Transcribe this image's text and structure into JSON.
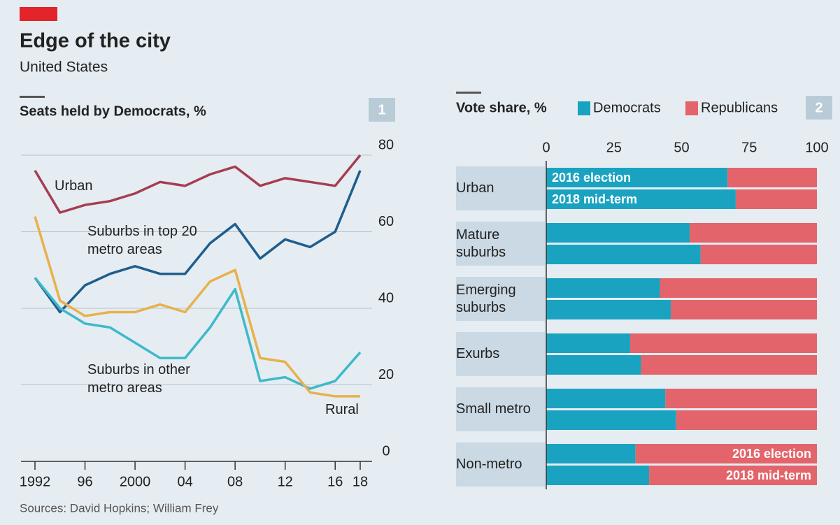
{
  "header": {
    "title": "Edge of the city",
    "subtitle": "United States",
    "source": "Sources: David Hopkins; William Frey"
  },
  "chart_data": [
    {
      "type": "line",
      "title": "Seats held by Democrats, %",
      "panel_number": 1,
      "x": [
        1992,
        1994,
        1996,
        1998,
        2000,
        2002,
        2004,
        2006,
        2008,
        2010,
        2012,
        2014,
        2016,
        2018
      ],
      "xlim": [
        1992,
        2018
      ],
      "xticks": [
        1992,
        {
          "value": 1996,
          "label": "96"
        },
        2000,
        {
          "value": 2004,
          "label": "04"
        },
        {
          "value": 2008,
          "label": "08"
        },
        {
          "value": 2012,
          "label": "12"
        },
        {
          "value": 2016,
          "label": "16"
        },
        {
          "value": 2018,
          "label": "18"
        }
      ],
      "ylim": [
        0,
        80
      ],
      "yticks": [
        0,
        20,
        40,
        60,
        80
      ],
      "grid": true,
      "series": [
        {
          "name": "Urban",
          "color": "#a63d52",
          "values": [
            76,
            65,
            67,
            68,
            70,
            73,
            72,
            75,
            77,
            72,
            74,
            73,
            72,
            80
          ]
        },
        {
          "name": "Suburbs in top 20 metro areas",
          "color": "#1f5e8e",
          "values": [
            48,
            39,
            46,
            49,
            51,
            49,
            49,
            57,
            62,
            53,
            58,
            56,
            60,
            76
          ]
        },
        {
          "name": "Suburbs in other metro areas",
          "color": "#3fb9c9",
          "values": [
            48,
            40,
            36,
            35,
            31,
            27,
            27,
            35,
            45,
            21,
            22,
            19,
            21,
            28.5
          ]
        },
        {
          "name": "Rural",
          "color": "#e9b04c",
          "values": [
            64,
            42,
            38,
            39,
            39,
            41,
            39,
            47,
            50,
            27,
            26,
            18,
            17,
            17
          ]
        }
      ]
    },
    {
      "type": "bar",
      "orientation": "horizontal",
      "stacked": true,
      "title": "Vote share, %",
      "panel_number": 2,
      "categories": [
        "Urban",
        "Mature suburbs",
        "Emerging suburbs",
        "Exurbs",
        "Small metro",
        "Non-metro"
      ],
      "bar_labels": [
        "2016 election",
        "2018 mid-term"
      ],
      "xlim": [
        0,
        100
      ],
      "xticks": [
        0,
        25,
        50,
        75,
        100
      ],
      "legend": "top",
      "series": [
        {
          "name": "Democrats",
          "color": "#1aa3c1",
          "values": [
            [
              67,
              70
            ],
            [
              53,
              57
            ],
            [
              42,
              46
            ],
            [
              31,
              35
            ],
            [
              44,
              48
            ],
            [
              33,
              38
            ]
          ]
        },
        {
          "name": "Republicans",
          "color": "#e3646a",
          "values": [
            [
              33,
              30
            ],
            [
              47,
              43
            ],
            [
              58,
              54
            ],
            [
              69,
              65
            ],
            [
              56,
              52
            ],
            [
              67,
              62
            ]
          ]
        }
      ]
    }
  ]
}
